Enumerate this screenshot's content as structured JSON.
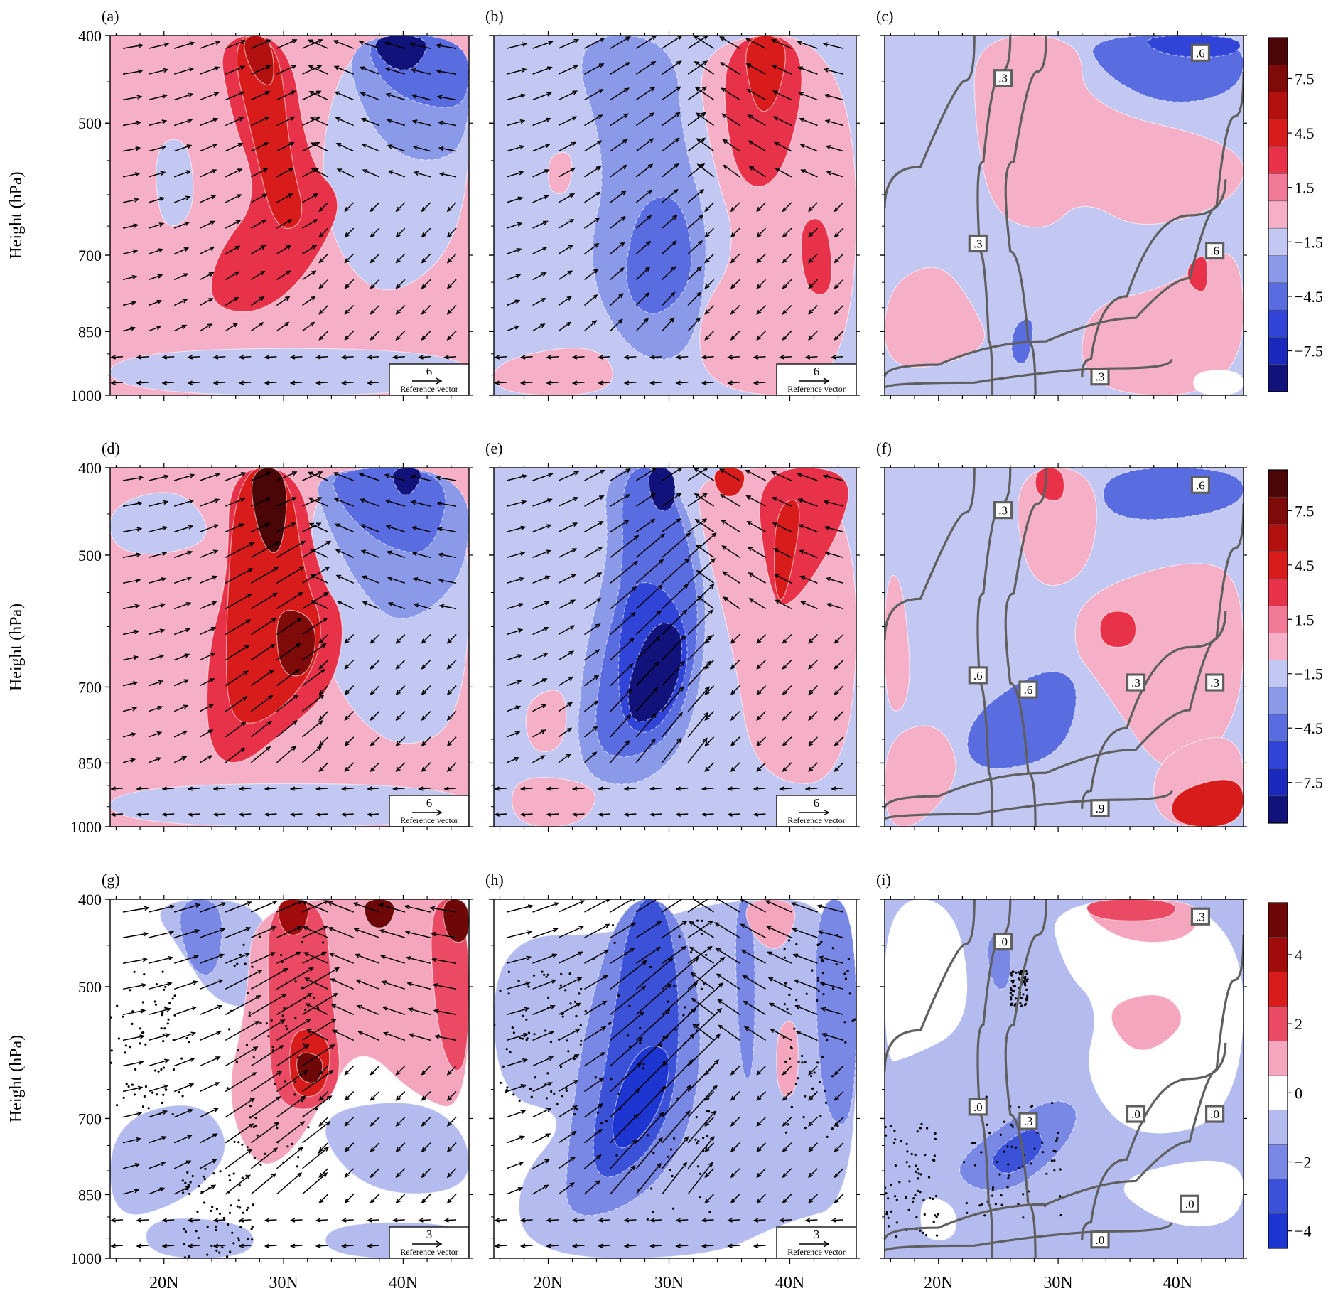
{
  "chart_data": {
    "type": "heatmap",
    "layout": "3 rows x 3 columns of latitude-height cross-section panels",
    "panel_labels": [
      "(a)",
      "(b)",
      "(c)",
      "(d)",
      "(e)",
      "(f)",
      "(g)",
      "(h)",
      "(i)"
    ],
    "y_axis": {
      "label": "Height (hPa)",
      "ticks": [
        "400",
        "500",
        "700",
        "850",
        "1000"
      ],
      "values": [
        400,
        500,
        700,
        850,
        1000
      ],
      "inverted": true
    },
    "x_axis": {
      "ticks": [
        "20N",
        "30N",
        "40N"
      ],
      "values": [
        20,
        30,
        40
      ],
      "range": [
        15.5,
        45.5
      ]
    },
    "reference_vector": {
      "label": "Reference vector",
      "rows": [
        "6",
        "6",
        "3"
      ]
    },
    "colorbars": [
      {
        "row": "top",
        "tick_labels": [
          "7.5",
          "4.5",
          "1.5",
          "−1.5",
          "−4.5",
          "−7.5"
        ],
        "colors": [
          "#4a0606",
          "#7e0a0a",
          "#b31010",
          "#d81c1c",
          "#e8324a",
          "#f07a98",
          "#f5b0c8",
          "#c2c8f2",
          "#8a9ae8",
          "#5a6de0",
          "#3045d8",
          "#1a28bc",
          "#11137a"
        ]
      },
      {
        "row": "middle",
        "tick_labels": [
          "7.5",
          "4.5",
          "1.5",
          "−1.5",
          "−4.5",
          "−7.5"
        ],
        "colors": [
          "#4a0606",
          "#7e0a0a",
          "#b31010",
          "#d81c1c",
          "#e8324a",
          "#f07a98",
          "#f5b0c8",
          "#c2c8f2",
          "#8a9ae8",
          "#5a6de0",
          "#3045d8",
          "#1a28bc",
          "#11137a"
        ]
      },
      {
        "row": "bottom",
        "tick_labels": [
          "4",
          "2",
          "0",
          "−2",
          "−4"
        ],
        "colors": [
          "#6e0808",
          "#a00c0c",
          "#d81c1c",
          "#ea4a64",
          "#f5a6bf",
          "#ffffff",
          "#b4bcef",
          "#7888e4",
          "#3b52d8",
          "#1d36d2"
        ]
      }
    ],
    "contour_labels": {
      "c": [
        ".3",
        ".3",
        ".6",
        ".6",
        ".3"
      ],
      "f": [
        ".3",
        ".6",
        ".6",
        ".3",
        ".9",
        ".6",
        ".3"
      ],
      "i": [
        ".0",
        ".0",
        ".3",
        ".0",
        ".0",
        ".3",
        ".0",
        ".0"
      ]
    }
  }
}
